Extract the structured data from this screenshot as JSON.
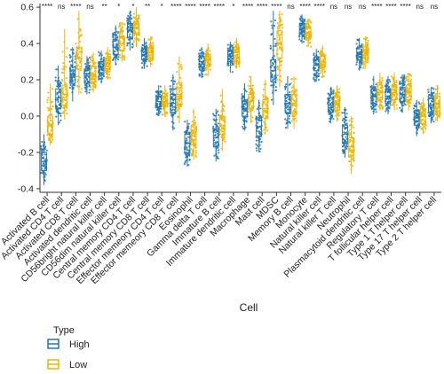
{
  "chart_data": {
    "type": "scatter",
    "subtype": "jitter-boxplot",
    "xlabel": "Cell",
    "ylabel": "",
    "ylim": [
      -0.42,
      0.62
    ],
    "yticks": [
      "-0.4",
      "-0.2",
      "0.0",
      "0.2",
      "0.4",
      "0.6"
    ],
    "grid": false,
    "legend": {
      "title": "Type",
      "placement": "bottom-left",
      "entries": [
        {
          "name": "High",
          "color": "#1f77b4"
        },
        {
          "name": "Low",
          "color": "#f0b400"
        }
      ]
    },
    "categories": [
      "Activated B cell",
      "Activated CD4 T cell",
      "Activated CD8 T cell",
      "Activated dendritic cell",
      "CD56bright natural killer cell",
      "CD56dim natural killer cell",
      "Central memory CD4 T cell",
      "Central memory CD8 T cell",
      "Effector memeory CD4 T cell",
      "Effector memeory CD8 T cell",
      "Eosinophil",
      "Gamma delta T cell",
      "Immature B cell",
      "Immature dendritic cell",
      "Macrophage",
      "Mast cell",
      "MDSC",
      "Memory B cell",
      "Monocyte",
      "Natural killer cell",
      "Natural killer T cell",
      "Neutrophil",
      "Plasmacytoid dendritic cell",
      "Regulatory T cell",
      "T follicular helper cell",
      "Type 1 T helper cell",
      "Type 17 T helper cell",
      "Type 2 T helper cell"
    ],
    "significance": [
      "****",
      "ns",
      "****",
      "ns",
      "**",
      "*",
      "*",
      "**",
      "*",
      "****",
      "****",
      "****",
      "****",
      "*",
      "****",
      "****",
      "****",
      "ns",
      "****",
      "****",
      "ns",
      "ns",
      "ns",
      "****",
      "****",
      "****",
      "ns",
      "ns"
    ],
    "series": [
      {
        "name": "High",
        "color": "#1f77b4",
        "median": [
          -0.25,
          0.1,
          0.23,
          0.22,
          0.27,
          0.38,
          0.47,
          0.34,
          0.08,
          0.07,
          -0.15,
          0.3,
          -0.12,
          0.33,
          0.04,
          -0.06,
          0.25,
          0.07,
          0.48,
          0.28,
          0.06,
          -0.1,
          0.34,
          0.11,
          0.11,
          0.12,
          -0.01,
          0.06
        ],
        "q1": [
          -0.3,
          0.04,
          0.18,
          0.18,
          0.24,
          0.34,
          0.43,
          0.31,
          0.05,
          0.02,
          -0.2,
          0.27,
          -0.17,
          0.3,
          0.0,
          -0.11,
          0.19,
          0.02,
          0.45,
          0.25,
          0.02,
          -0.15,
          0.31,
          0.07,
          0.07,
          0.08,
          -0.05,
          0.02
        ],
        "q3": [
          -0.2,
          0.15,
          0.27,
          0.26,
          0.3,
          0.42,
          0.51,
          0.37,
          0.11,
          0.12,
          -0.1,
          0.33,
          -0.07,
          0.36,
          0.08,
          -0.01,
          0.31,
          0.12,
          0.51,
          0.31,
          0.1,
          -0.05,
          0.37,
          0.15,
          0.15,
          0.16,
          0.03,
          0.1
        ],
        "min": [
          -0.38,
          -0.05,
          0.08,
          0.12,
          0.18,
          0.28,
          0.36,
          0.26,
          0.0,
          -0.08,
          -0.28,
          0.21,
          -0.25,
          0.24,
          -0.08,
          -0.2,
          0.06,
          -0.07,
          0.4,
          0.19,
          -0.04,
          -0.23,
          0.25,
          0.01,
          0.01,
          0.02,
          -0.11,
          -0.04
        ],
        "max": [
          -0.1,
          0.28,
          0.38,
          0.33,
          0.36,
          0.5,
          0.58,
          0.43,
          0.17,
          0.23,
          -0.02,
          0.38,
          0.04,
          0.41,
          0.18,
          0.09,
          0.58,
          0.22,
          0.56,
          0.37,
          0.16,
          0.05,
          0.43,
          0.22,
          0.22,
          0.23,
          0.09,
          0.16
        ]
      },
      {
        "name": "Low",
        "color": "#f0b400",
        "median": [
          -0.05,
          0.12,
          0.32,
          0.23,
          0.29,
          0.4,
          0.49,
          0.35,
          0.08,
          0.12,
          -0.11,
          0.31,
          -0.05,
          0.35,
          0.08,
          0.04,
          0.4,
          0.07,
          0.46,
          0.3,
          0.07,
          -0.17,
          0.35,
          0.13,
          0.13,
          0.13,
          0.0,
          0.07
        ],
        "q1": [
          -0.1,
          0.06,
          0.26,
          0.19,
          0.26,
          0.36,
          0.45,
          0.32,
          0.05,
          0.06,
          -0.16,
          0.28,
          -0.1,
          0.32,
          0.04,
          -0.01,
          0.32,
          0.02,
          0.43,
          0.27,
          0.03,
          -0.22,
          0.32,
          0.09,
          0.09,
          0.09,
          -0.04,
          0.03
        ],
        "q3": [
          0.0,
          0.17,
          0.38,
          0.27,
          0.32,
          0.44,
          0.52,
          0.38,
          0.11,
          0.18,
          -0.06,
          0.34,
          0.0,
          0.38,
          0.12,
          0.09,
          0.47,
          0.12,
          0.49,
          0.33,
          0.11,
          -0.12,
          0.38,
          0.17,
          0.17,
          0.17,
          0.04,
          0.11
        ],
        "min": [
          -0.16,
          -0.02,
          0.12,
          0.13,
          0.2,
          0.3,
          0.38,
          0.27,
          0.0,
          -0.04,
          -0.24,
          0.22,
          -0.19,
          0.26,
          -0.04,
          -0.1,
          0.16,
          -0.07,
          0.38,
          0.21,
          -0.03,
          -0.32,
          0.26,
          0.03,
          0.03,
          0.03,
          -0.1,
          -0.03
        ],
        "max": [
          0.18,
          0.48,
          0.58,
          0.35,
          0.38,
          0.52,
          0.6,
          0.44,
          0.17,
          0.33,
          0.04,
          0.4,
          0.15,
          0.43,
          0.22,
          0.2,
          0.58,
          0.22,
          0.54,
          0.39,
          0.17,
          0.0,
          0.44,
          0.24,
          0.24,
          0.24,
          0.1,
          0.17
        ]
      }
    ]
  }
}
